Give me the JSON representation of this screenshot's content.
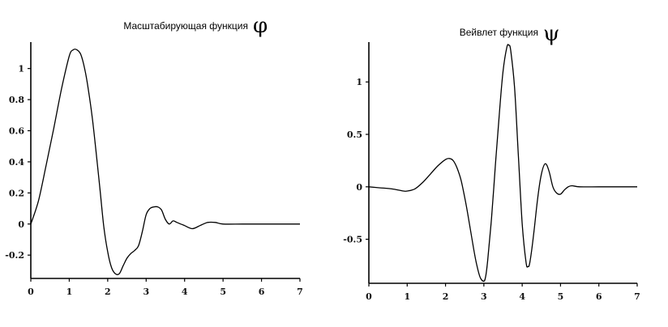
{
  "chart_data": [
    {
      "type": "line",
      "title": "Масштабирующая функция",
      "title_symbol": "φ",
      "xlim": [
        0,
        7
      ],
      "ylim": [
        -0.35,
        1.17
      ],
      "x_ticks": [
        0,
        1,
        2,
        3,
        4,
        5,
        6,
        7
      ],
      "x_tick_labels": [
        "0",
        "1",
        "2",
        "3",
        "4",
        "5",
        "6",
        "7"
      ],
      "y_ticks": [
        -0.2,
        0,
        0.2,
        0.4,
        0.6,
        0.8,
        1
      ],
      "y_tick_labels": [
        "-0.2",
        "0",
        "0.2",
        "0.4",
        "0.6",
        "0.8",
        "1"
      ],
      "grid": false,
      "series": [
        {
          "x": [
            0,
            0.2,
            0.4,
            0.6,
            0.8,
            1.0,
            1.1,
            1.2,
            1.3,
            1.4,
            1.5,
            1.6,
            1.7,
            1.8,
            1.9,
            2.0,
            2.1,
            2.2,
            2.3,
            2.4,
            2.5,
            2.6,
            2.7,
            2.8,
            2.9,
            3.0,
            3.1,
            3.2,
            3.3,
            3.4,
            3.5,
            3.6,
            3.7,
            3.8,
            3.9,
            4.0,
            4.2,
            4.4,
            4.6,
            4.8,
            5.0,
            5.5,
            6.0,
            6.5,
            7.0
          ],
          "y": [
            0,
            0.15,
            0.38,
            0.62,
            0.87,
            1.08,
            1.12,
            1.12,
            1.09,
            1.0,
            0.86,
            0.68,
            0.46,
            0.22,
            -0.02,
            -0.18,
            -0.28,
            -0.32,
            -0.32,
            -0.27,
            -0.22,
            -0.19,
            -0.17,
            -0.14,
            -0.05,
            0.06,
            0.1,
            0.11,
            0.11,
            0.09,
            0.03,
            0.0,
            0.02,
            0.01,
            0.0,
            -0.01,
            -0.03,
            -0.01,
            0.01,
            0.01,
            0.0,
            0.0,
            0.0,
            0.0,
            0.0
          ]
        }
      ]
    },
    {
      "type": "line",
      "title": "Вейвлет функция",
      "title_symbol": "ψ",
      "xlim": [
        0,
        7
      ],
      "ylim": [
        -0.92,
        1.38
      ],
      "x_ticks": [
        0,
        1,
        2,
        3,
        4,
        5,
        6,
        7
      ],
      "x_tick_labels": [
        "0",
        "1",
        "2",
        "3",
        "4",
        "5",
        "6",
        "7"
      ],
      "y_ticks": [
        -0.5,
        0,
        0.5,
        1
      ],
      "y_tick_labels": [
        "-0.5",
        "0",
        "0.5",
        "1"
      ],
      "grid": false,
      "series": [
        {
          "x": [
            0,
            0.3,
            0.6,
            0.9,
            1.0,
            1.2,
            1.4,
            1.6,
            1.8,
            2.0,
            2.1,
            2.2,
            2.3,
            2.4,
            2.5,
            2.6,
            2.7,
            2.8,
            2.9,
            3.0,
            3.05,
            3.1,
            3.2,
            3.3,
            3.4,
            3.5,
            3.6,
            3.65,
            3.7,
            3.8,
            3.9,
            4.0,
            4.1,
            4.15,
            4.2,
            4.3,
            4.4,
            4.5,
            4.6,
            4.7,
            4.8,
            4.9,
            5.0,
            5.1,
            5.2,
            5.3,
            5.5,
            6.0,
            6.5,
            7.0
          ],
          "y": [
            0,
            -0.01,
            -0.02,
            -0.04,
            -0.04,
            -0.02,
            0.04,
            0.12,
            0.2,
            0.26,
            0.27,
            0.25,
            0.18,
            0.07,
            -0.1,
            -0.3,
            -0.52,
            -0.72,
            -0.86,
            -0.9,
            -0.85,
            -0.7,
            -0.3,
            0.2,
            0.68,
            1.1,
            1.33,
            1.35,
            1.3,
            0.95,
            0.3,
            -0.35,
            -0.72,
            -0.76,
            -0.72,
            -0.45,
            -0.12,
            0.12,
            0.22,
            0.15,
            0.0,
            -0.06,
            -0.07,
            -0.03,
            0.0,
            0.01,
            0.0,
            0.0,
            0.0,
            0.0
          ]
        }
      ]
    }
  ]
}
